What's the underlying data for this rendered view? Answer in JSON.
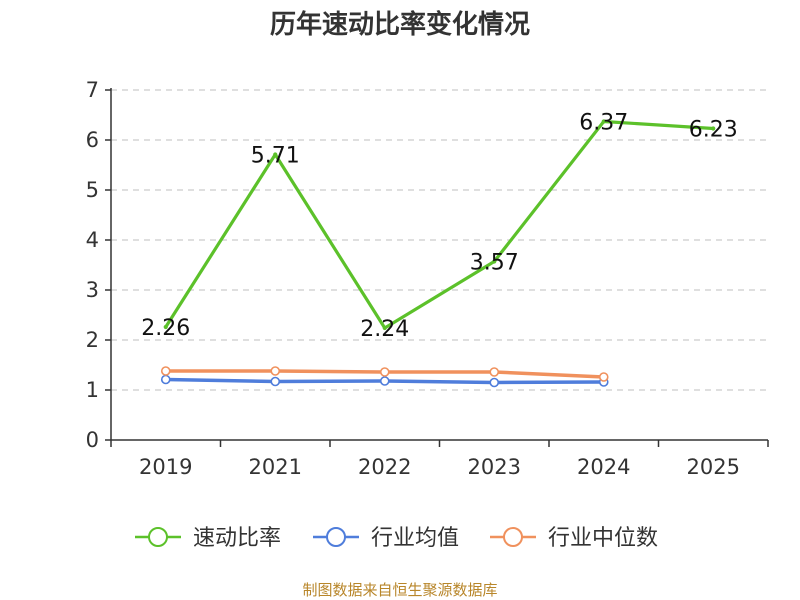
{
  "chart_data": {
    "type": "line",
    "title": "历年速动比率变化情况",
    "categories": [
      "2019",
      "2021",
      "2022",
      "2023",
      "2024",
      "2025"
    ],
    "ylim": [
      0,
      7
    ],
    "yticks": [
      "0",
      "1",
      "2",
      "3",
      "4",
      "5",
      "6",
      "7"
    ],
    "grid": true,
    "legend_position": "bottom",
    "series": [
      {
        "name": "速动比率",
        "color": "#5cc12a",
        "values": [
          2.26,
          5.71,
          2.24,
          3.57,
          6.37,
          6.23
        ],
        "labels": [
          "2.26",
          "5.71",
          "2.24",
          "3.57",
          "6.37",
          "6.23"
        ]
      },
      {
        "name": "行业均值",
        "color": "#4f7ddb",
        "values": [
          1.21,
          1.17,
          1.18,
          1.15,
          1.16,
          null
        ]
      },
      {
        "name": "行业中位数",
        "color": "#f0915d",
        "values": [
          1.38,
          1.38,
          1.36,
          1.36,
          1.26,
          null
        ]
      }
    ]
  },
  "source_text": "制图数据来自恒生聚源数据库"
}
